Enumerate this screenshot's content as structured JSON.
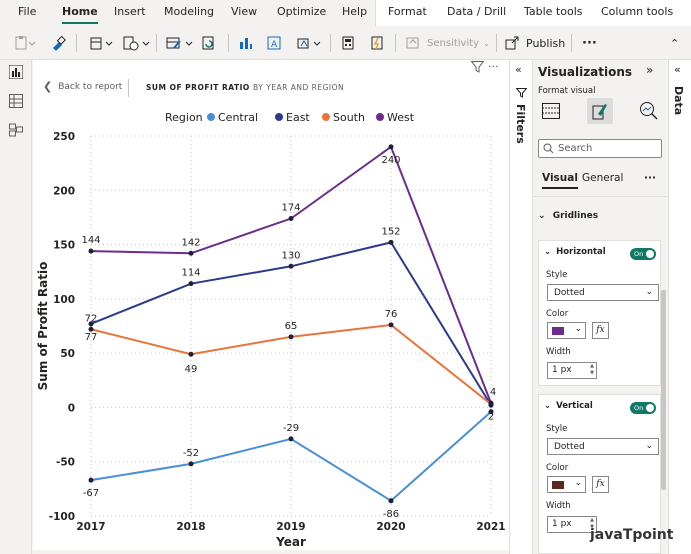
{
  "ribbon": {
    "tabs": [
      "File",
      "Home",
      "Insert",
      "Modeling",
      "View",
      "Optimize",
      "Help",
      "Format",
      "Data / Drill",
      "Table tools",
      "Column tools"
    ],
    "active": "Home",
    "sensitivity_label": "Sensitivity",
    "publish_label": "Publish",
    "more_label": "···"
  },
  "report": {
    "back_label": "Back to report",
    "crumb_title": "SUM OF PROFIT RATIO",
    "crumb_sub": "BY YEAR AND REGION",
    "more_label": "···"
  },
  "chart_data": {
    "type": "line",
    "legend_title": "Region",
    "legend_position": "top",
    "x": [
      "2017",
      "2018",
      "2019",
      "2020",
      "2021"
    ],
    "xlabel": "Year",
    "ylabel": "Sum of Profit Ratio",
    "ylim": [
      -100,
      250
    ],
    "yticks": [
      -100,
      -50,
      0,
      50,
      100,
      150,
      200,
      250
    ],
    "grid": "dotted",
    "series": [
      {
        "name": "Central",
        "color": "#4a8fd4",
        "values": [
          -67,
          -52,
          -29,
          -86,
          -4
        ]
      },
      {
        "name": "East",
        "color": "#2d3a8c",
        "values": [
          77,
          114,
          130,
          152,
          2
        ]
      },
      {
        "name": "South",
        "color": "#e8743b",
        "values": [
          72,
          49,
          65,
          76,
          3
        ]
      },
      {
        "name": "West",
        "color": "#6c2c8c",
        "values": [
          144,
          142,
          174,
          240,
          4
        ]
      }
    ],
    "data_labels": [
      {
        "series": "Central",
        "text": "-67"
      },
      {
        "series": "Central",
        "text": "-52"
      },
      {
        "series": "Central",
        "text": "-29"
      },
      {
        "series": "Central",
        "text": "-86"
      },
      {
        "series": "East",
        "text": "77"
      },
      {
        "series": "East",
        "text": "114"
      },
      {
        "series": "East",
        "text": "130"
      },
      {
        "series": "East",
        "text": "152"
      },
      {
        "series": "East",
        "text": "2"
      },
      {
        "series": "South",
        "text": "72"
      },
      {
        "series": "South",
        "text": "49"
      },
      {
        "series": "South",
        "text": "65"
      },
      {
        "series": "South",
        "text": "76"
      },
      {
        "series": "West",
        "text": "144"
      },
      {
        "series": "West",
        "text": "142"
      },
      {
        "series": "West",
        "text": "174"
      },
      {
        "series": "West",
        "text": "240"
      },
      {
        "series": "West",
        "text": "4"
      }
    ]
  },
  "panes": {
    "filters_label": "Filters",
    "visualizations_label": "Visualizations",
    "data_label": "Data",
    "format_visual_label": "Format visual",
    "search_placeholder": "Search",
    "tabs": [
      "Visual",
      "General"
    ],
    "active_tab": "Visual",
    "section_gridlines": "Gridlines",
    "horizontal": {
      "label": "Horizontal",
      "toggle": "On",
      "style_label": "Style",
      "style_value": "Dotted",
      "color_label": "Color",
      "color": "#6c2c8c",
      "width_label": "Width",
      "width_value": "1 px"
    },
    "vertical": {
      "label": "Vertical",
      "toggle": "On",
      "style_label": "Style",
      "style_value": "Dotted",
      "color_label": "Color",
      "color": "#5a2a22",
      "width_label": "Width",
      "width_value": "1 px"
    },
    "fx_label": "fx"
  },
  "watermark": "javaTpoint"
}
